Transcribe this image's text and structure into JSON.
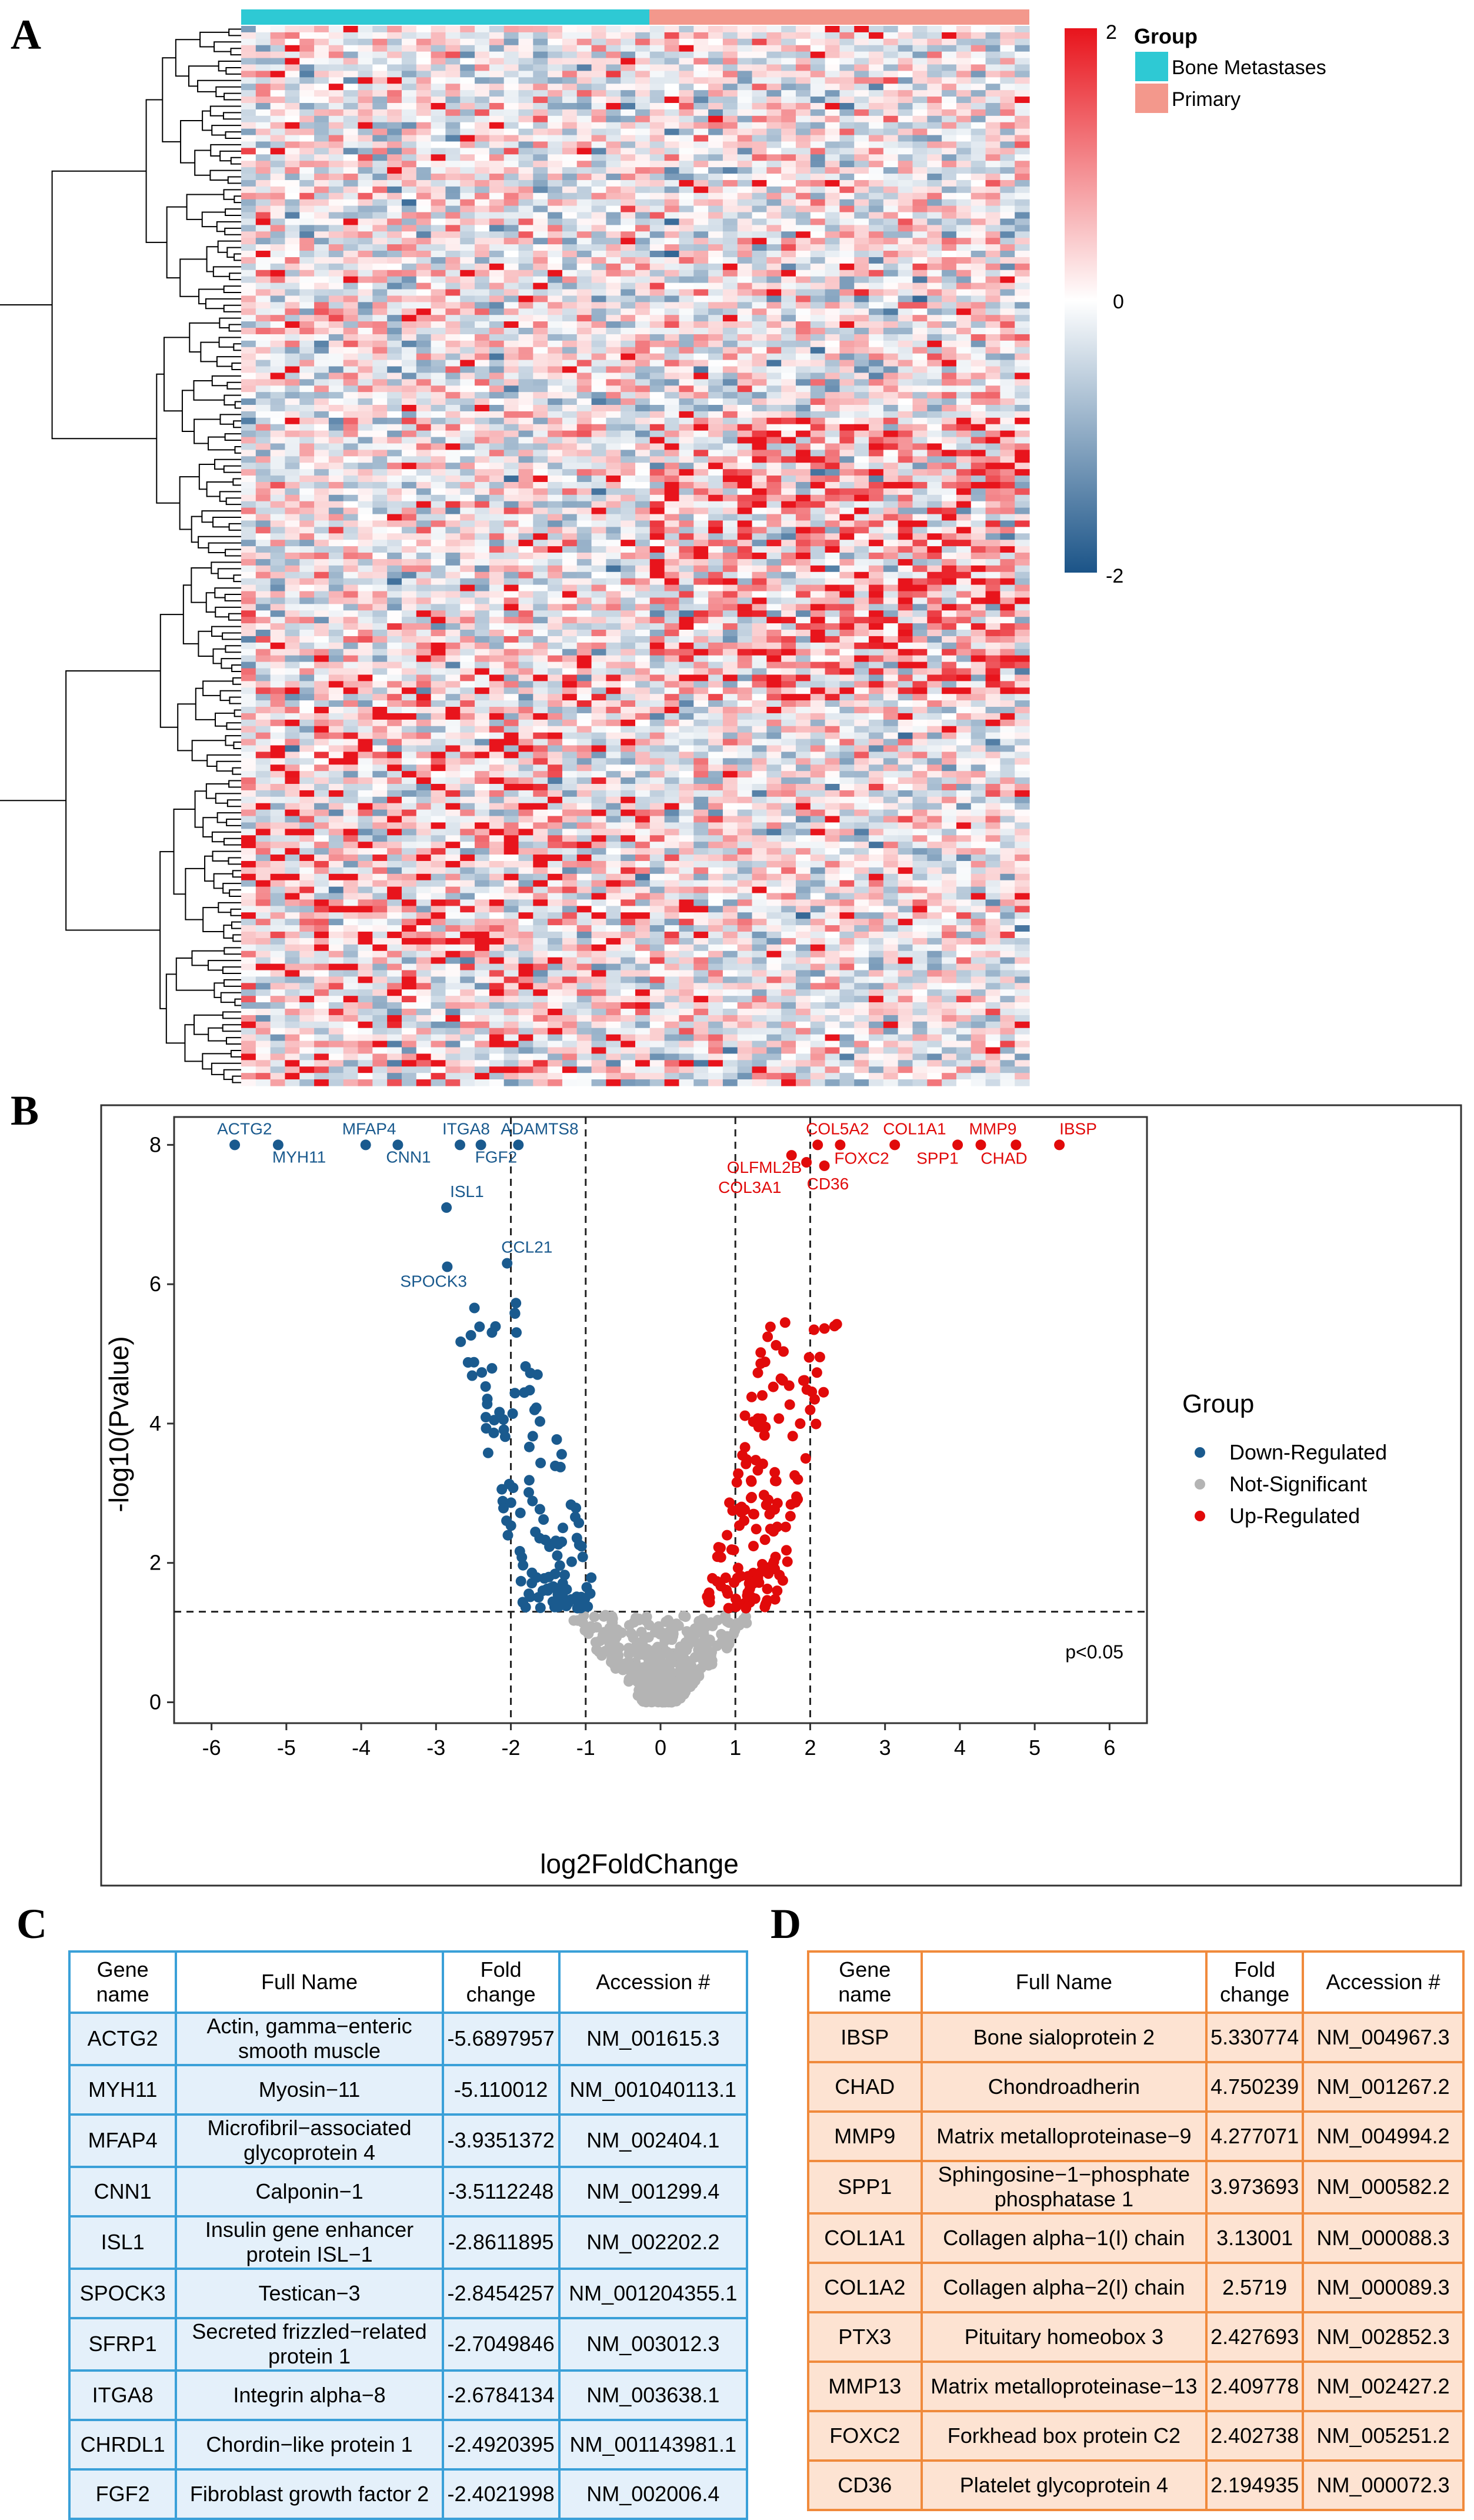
{
  "panels": {
    "a": "A",
    "b": "B",
    "c": "C",
    "d": "D"
  },
  "colors": {
    "heat_high": "#e8141c",
    "heat_mid": "#ffffff",
    "heat_low": "#1b5488",
    "bone_metastases": "#2ec9d4",
    "primary": "#f3988c",
    "down": "#1a5a8e",
    "up": "#e10a0a",
    "ns": "#b4b4b4",
    "table_blue_border": "#3aa0d8",
    "table_blue_fill": "#e4f0fa",
    "table_orange_border": "#f08a3c",
    "table_orange_fill": "#fde3d2"
  },
  "chart_data": [
    {
      "type": "heatmap",
      "colorbar": {
        "max_label": "2",
        "mid_label": "0",
        "min_label": "-2",
        "range": [
          -2,
          2
        ]
      },
      "legend": {
        "title": "Group",
        "entries": [
          "Bone Metastases",
          "Primary"
        ]
      },
      "groups": [
        {
          "name": "Bone Metastases",
          "n_samples": 28
        },
        {
          "name": "Primary",
          "n_samples": 26
        }
      ],
      "n_genes": 165,
      "dendrogram": "rows"
    },
    {
      "type": "scatter",
      "title": "",
      "xlabel": "log2FoldChange",
      "ylabel": "-log10(Pvalue)",
      "xlim": [
        -6.5,
        6.5
      ],
      "ylim": [
        -0.3,
        8.4
      ],
      "x_ticks": [
        "-6",
        "-5",
        "-4",
        "-3",
        "-2",
        "-1",
        "0",
        "1",
        "2",
        "3",
        "4",
        "5",
        "6"
      ],
      "y_ticks": [
        "0",
        "2",
        "4",
        "6",
        "8"
      ],
      "vlines": [
        -2,
        -1,
        1,
        2
      ],
      "hline": 1.3,
      "hline_label": "p<0.05",
      "legend": {
        "title": "Group",
        "entries": [
          "Down-Regulated",
          "Not-Significant",
          "Up-Regulated"
        ]
      },
      "labeled_points": [
        {
          "gene": "ACTG2",
          "x": -5.69,
          "y": 8.0,
          "group": "Down-Regulated"
        },
        {
          "gene": "MYH11",
          "x": -5.11,
          "y": 8.0,
          "group": "Down-Regulated"
        },
        {
          "gene": "MFAP4",
          "x": -3.94,
          "y": 8.0,
          "group": "Down-Regulated"
        },
        {
          "gene": "CNN1",
          "x": -3.51,
          "y": 8.0,
          "group": "Down-Regulated"
        },
        {
          "gene": "ITGA8",
          "x": -2.68,
          "y": 8.0,
          "group": "Down-Regulated"
        },
        {
          "gene": "FGF2",
          "x": -2.4,
          "y": 8.0,
          "group": "Down-Regulated"
        },
        {
          "gene": "ADAMTS8",
          "x": -1.9,
          "y": 8.0,
          "group": "Down-Regulated"
        },
        {
          "gene": "ISL1",
          "x": -2.86,
          "y": 7.1,
          "group": "Down-Regulated"
        },
        {
          "gene": "CCL21",
          "x": -2.05,
          "y": 6.3,
          "group": "Down-Regulated"
        },
        {
          "gene": "SPOCK3",
          "x": -2.85,
          "y": 6.25,
          "group": "Down-Regulated"
        },
        {
          "gene": "COL5A2",
          "x": 2.1,
          "y": 8.0,
          "group": "Up-Regulated"
        },
        {
          "gene": "COL1A1",
          "x": 3.13,
          "y": 8.0,
          "group": "Up-Regulated"
        },
        {
          "gene": "MMP9",
          "x": 4.28,
          "y": 8.0,
          "group": "Up-Regulated"
        },
        {
          "gene": "IBSP",
          "x": 5.33,
          "y": 8.0,
          "group": "Up-Regulated"
        },
        {
          "gene": "OLFML2B",
          "x": 1.75,
          "y": 7.85,
          "group": "Up-Regulated"
        },
        {
          "gene": "FOXC2",
          "x": 2.4,
          "y": 8.0,
          "group": "Up-Regulated"
        },
        {
          "gene": "SPP1",
          "x": 3.97,
          "y": 8.0,
          "group": "Up-Regulated"
        },
        {
          "gene": "CHAD",
          "x": 4.75,
          "y": 8.0,
          "group": "Up-Regulated"
        },
        {
          "gene": "COL3A1",
          "x": 1.95,
          "y": 7.75,
          "group": "Up-Regulated"
        },
        {
          "gene": "CD36",
          "x": 2.19,
          "y": 7.7,
          "group": "Up-Regulated"
        }
      ]
    }
  ],
  "table_down": {
    "headers": [
      "Gene name",
      "Full Name",
      "Fold change",
      "Accession #"
    ],
    "rows": [
      [
        "ACTG2",
        "Actin, gamma−enteric smooth muscle",
        "-5.6897957",
        "NM_001615.3"
      ],
      [
        "MYH11",
        "Myosin−11",
        "-5.110012",
        "NM_001040113.1"
      ],
      [
        "MFAP4",
        "Microfibril−associated glycoprotein 4",
        "-3.9351372",
        "NM_002404.1"
      ],
      [
        "CNN1",
        "Calponin−1",
        "-3.5112248",
        "NM_001299.4"
      ],
      [
        "ISL1",
        "Insulin gene enhancer protein ISL−1",
        "-2.8611895",
        "NM_002202.2"
      ],
      [
        "SPOCK3",
        "Testican−3",
        "-2.8454257",
        "NM_001204355.1"
      ],
      [
        "SFRP1",
        "Secreted frizzled−related protein 1",
        "-2.7049846",
        "NM_003012.3"
      ],
      [
        "ITGA8",
        "Integrin alpha−8",
        "-2.6784134",
        "NM_003638.1"
      ],
      [
        "CHRDL1",
        "Chordin−like protein 1",
        "-2.4920395",
        "NM_001143981.1"
      ],
      [
        "FGF2",
        "Fibroblast growth factor 2",
        "-2.4021998",
        "NM_002006.4"
      ]
    ]
  },
  "table_up": {
    "headers": [
      "Gene name",
      "Full Name",
      "Fold change",
      "Accession #"
    ],
    "rows": [
      [
        "IBSP",
        "Bone sialoprotein 2",
        "5.330774",
        "NM_004967.3"
      ],
      [
        "CHAD",
        "Chondroadherin",
        "4.750239",
        "NM_001267.2"
      ],
      [
        "MMP9",
        "Matrix metalloproteinase−9",
        "4.277071",
        "NM_004994.2"
      ],
      [
        "SPP1",
        "Sphingosine−1−phosphate phosphatase 1",
        "3.973693",
        "NM_000582.2"
      ],
      [
        "COL1A1",
        "Collagen alpha−1(I) chain",
        "3.13001",
        "NM_000088.3"
      ],
      [
        "COL1A2",
        "Collagen alpha−2(I) chain",
        "2.5719",
        "NM_000089.3"
      ],
      [
        "PTX3",
        "Pituitary homeobox 3",
        "2.427693",
        "NM_002852.3"
      ],
      [
        "MMP13",
        "Matrix metalloproteinase−13",
        "2.409778",
        "NM_002427.2"
      ],
      [
        "FOXC2",
        "Forkhead box protein C2",
        "2.402738",
        "NM_005251.2"
      ],
      [
        "CD36",
        "Platelet glycoprotein 4",
        "2.194935",
        "NM_000072.3"
      ]
    ]
  }
}
